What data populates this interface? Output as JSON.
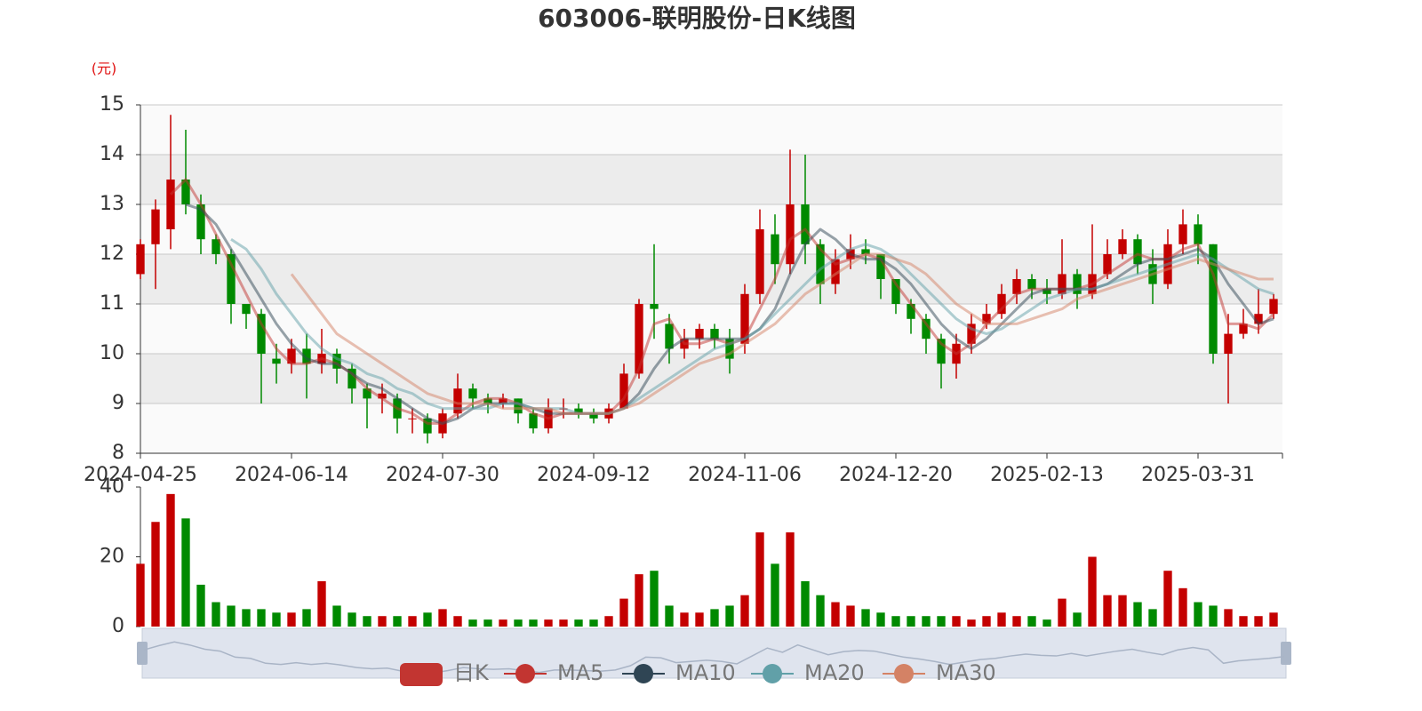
{
  "chart_data": {
    "type": "candlestick",
    "title": "603006-联明股份-日K线图",
    "y_unit": "(元)",
    "categories": [
      "2024-04-25",
      null,
      null,
      null,
      null,
      null,
      null,
      null,
      null,
      null,
      "2024-06-14",
      null,
      null,
      null,
      null,
      null,
      null,
      null,
      null,
      null,
      "2024-07-30",
      null,
      null,
      null,
      null,
      null,
      null,
      null,
      null,
      null,
      "2024-09-12",
      null,
      null,
      null,
      null,
      null,
      null,
      null,
      null,
      null,
      "2024-11-06",
      null,
      null,
      null,
      null,
      null,
      null,
      null,
      null,
      null,
      "2024-12-20",
      null,
      null,
      null,
      null,
      null,
      null,
      null,
      null,
      null,
      "2025-02-13",
      null,
      null,
      null,
      null,
      null,
      null,
      null,
      null,
      null,
      "2025-03-31",
      null,
      null,
      null,
      null,
      null
    ],
    "ylim": [
      8,
      15
    ],
    "yticks": [
      8,
      9,
      10,
      11,
      12,
      13,
      14,
      15
    ],
    "candles": {
      "name": "日K",
      "color": "#c23531",
      "up_color": "#c40000",
      "down_color": "#008a00",
      "open": [
        11.6,
        12.2,
        12.5,
        13.5,
        13.0,
        12.3,
        12.0,
        11.0,
        10.8,
        9.9,
        9.8,
        10.1,
        9.8,
        10.0,
        9.7,
        9.3,
        9.1,
        9.1,
        8.7,
        8.7,
        8.4,
        8.8,
        9.3,
        9.1,
        9.0,
        9.1,
        8.8,
        8.5,
        8.9,
        8.9,
        8.8,
        8.7,
        8.9,
        9.6,
        11.0,
        10.6,
        10.1,
        10.3,
        10.5,
        10.3,
        10.2,
        11.2,
        12.4,
        11.8,
        13.0,
        12.2,
        11.4,
        11.9,
        12.1,
        12.0,
        11.5,
        11.0,
        10.7,
        10.3,
        9.8,
        10.2,
        10.6,
        10.8,
        11.2,
        11.5,
        11.3,
        11.2,
        11.6,
        11.2,
        11.6,
        12.0,
        12.3,
        11.8,
        11.4,
        12.2,
        12.6,
        12.2,
        10.0,
        10.4,
        10.6,
        10.8
      ],
      "close": [
        12.2,
        12.9,
        13.5,
        13.0,
        12.3,
        12.0,
        11.0,
        10.8,
        10.0,
        9.8,
        10.1,
        9.8,
        10.0,
        9.7,
        9.3,
        9.1,
        9.2,
        8.7,
        8.7,
        8.4,
        8.8,
        9.3,
        9.1,
        9.0,
        9.1,
        8.8,
        8.5,
        8.9,
        8.9,
        8.8,
        8.7,
        8.9,
        9.6,
        11.0,
        10.9,
        10.1,
        10.3,
        10.5,
        10.3,
        9.9,
        11.2,
        12.5,
        11.8,
        13.0,
        12.2,
        11.4,
        11.9,
        12.1,
        12.0,
        11.5,
        11.0,
        10.7,
        10.3,
        9.8,
        10.2,
        10.6,
        10.8,
        11.2,
        11.5,
        11.3,
        11.2,
        11.6,
        11.2,
        11.6,
        12.0,
        12.3,
        11.8,
        11.4,
        12.2,
        12.6,
        12.2,
        10.0,
        10.4,
        10.6,
        10.8,
        11.1
      ],
      "high": [
        12.3,
        13.1,
        14.8,
        14.5,
        13.2,
        12.4,
        12.1,
        11.0,
        10.9,
        10.2,
        10.3,
        10.4,
        10.5,
        10.1,
        9.8,
        9.4,
        9.4,
        9.2,
        8.9,
        8.8,
        8.9,
        9.6,
        9.4,
        9.2,
        9.2,
        9.1,
        8.9,
        9.1,
        9.1,
        9.0,
        8.9,
        9.0,
        9.8,
        11.1,
        12.2,
        10.8,
        10.5,
        10.6,
        10.6,
        10.5,
        11.4,
        12.9,
        12.8,
        14.1,
        14.0,
        12.3,
        12.1,
        12.4,
        12.3,
        12.0,
        11.5,
        11.1,
        10.8,
        10.4,
        10.4,
        10.8,
        11.0,
        11.4,
        11.7,
        11.6,
        11.5,
        12.3,
        11.7,
        12.6,
        12.3,
        12.5,
        12.4,
        12.1,
        12.5,
        12.9,
        12.8,
        12.2,
        10.8,
        10.9,
        11.3,
        11.2
      ],
      "low": [
        11.5,
        11.3,
        12.1,
        12.8,
        12.0,
        11.8,
        10.6,
        10.5,
        9.0,
        9.4,
        9.6,
        9.1,
        9.6,
        9.4,
        9.0,
        8.5,
        8.8,
        8.4,
        8.4,
        8.2,
        8.3,
        8.7,
        8.9,
        8.8,
        8.9,
        8.6,
        8.4,
        8.4,
        8.7,
        8.7,
        8.6,
        8.6,
        8.9,
        9.5,
        10.3,
        9.8,
        9.9,
        10.1,
        10.1,
        9.6,
        10.0,
        11.0,
        11.4,
        11.6,
        11.8,
        11.0,
        11.2,
        11.7,
        11.8,
        11.1,
        10.8,
        10.4,
        10.0,
        9.3,
        9.5,
        10.0,
        10.5,
        10.7,
        11.0,
        11.1,
        11.0,
        11.1,
        10.9,
        11.1,
        11.5,
        11.9,
        11.6,
        11.0,
        11.3,
        12.0,
        11.8,
        9.8,
        9.0,
        10.3,
        10.4,
        10.7
      ]
    },
    "series": [
      {
        "name": "MA5",
        "color": "#c23531",
        "values": [
          null,
          null,
          13.2,
          13.5,
          13.0,
          12.4,
          11.8,
          11.2,
          10.6,
          10.1,
          9.8,
          9.8,
          9.9,
          9.8,
          9.6,
          9.3,
          9.1,
          8.9,
          8.8,
          8.6,
          8.6,
          8.8,
          9.0,
          9.1,
          9.1,
          9.0,
          8.8,
          8.7,
          8.8,
          8.8,
          8.8,
          8.8,
          9.1,
          9.7,
          10.6,
          10.7,
          10.2,
          10.2,
          10.3,
          10.2,
          10.3,
          10.9,
          11.5,
          12.3,
          12.5,
          12.1,
          11.8,
          11.9,
          12.0,
          11.9,
          11.4,
          11.0,
          10.6,
          10.2,
          10.0,
          10.2,
          10.6,
          10.9,
          11.2,
          11.3,
          11.3,
          11.3,
          11.3,
          11.4,
          11.6,
          11.8,
          12.0,
          11.9,
          11.9,
          12.1,
          12.2,
          11.6,
          10.6,
          10.6,
          10.5,
          10.8
        ]
      },
      {
        "name": "MA10",
        "color": "#2f4554",
        "values": [
          null,
          null,
          null,
          13.0,
          12.9,
          12.6,
          12.1,
          11.6,
          11.1,
          10.6,
          10.2,
          9.9,
          9.8,
          9.8,
          9.6,
          9.4,
          9.3,
          9.1,
          8.9,
          8.7,
          8.6,
          8.7,
          8.9,
          9.0,
          9.0,
          9.0,
          8.9,
          8.8,
          8.8,
          8.8,
          8.8,
          8.8,
          8.9,
          9.2,
          9.7,
          10.1,
          10.3,
          10.3,
          10.3,
          10.3,
          10.3,
          10.5,
          10.9,
          11.6,
          12.2,
          12.5,
          12.3,
          12.0,
          11.9,
          11.9,
          11.7,
          11.4,
          11.0,
          10.6,
          10.3,
          10.1,
          10.3,
          10.6,
          10.9,
          11.2,
          11.3,
          11.3,
          11.3,
          11.3,
          11.4,
          11.6,
          11.8,
          11.9,
          11.9,
          12.0,
          12.1,
          11.9,
          11.4,
          11.0,
          10.6,
          10.7
        ]
      },
      {
        "name": "MA20",
        "color": "#61a0a8",
        "values": [
          null,
          null,
          null,
          null,
          null,
          null,
          12.3,
          12.1,
          11.7,
          11.2,
          10.8,
          10.4,
          10.1,
          9.9,
          9.8,
          9.6,
          9.5,
          9.3,
          9.2,
          9.0,
          8.9,
          8.9,
          8.9,
          8.9,
          9.0,
          9.0,
          8.9,
          8.9,
          8.9,
          8.8,
          8.8,
          8.8,
          8.9,
          9.1,
          9.3,
          9.5,
          9.7,
          9.9,
          10.1,
          10.2,
          10.3,
          10.5,
          10.8,
          11.1,
          11.4,
          11.7,
          11.9,
          12.1,
          12.2,
          12.1,
          11.9,
          11.6,
          11.3,
          11.0,
          10.7,
          10.5,
          10.4,
          10.5,
          10.7,
          10.9,
          11.1,
          11.2,
          11.3,
          11.3,
          11.4,
          11.5,
          11.6,
          11.7,
          11.8,
          11.9,
          12.0,
          11.9,
          11.7,
          11.5,
          11.3,
          11.2
        ]
      },
      {
        "name": "MA30",
        "color": "#d48265",
        "values": [
          null,
          null,
          null,
          null,
          null,
          null,
          null,
          null,
          null,
          null,
          11.6,
          11.2,
          10.8,
          10.4,
          10.2,
          10.0,
          9.8,
          9.6,
          9.4,
          9.2,
          9.1,
          9.0,
          9.0,
          9.0,
          8.9,
          8.9,
          8.9,
          8.9,
          8.8,
          8.8,
          8.8,
          8.8,
          8.9,
          9.0,
          9.2,
          9.4,
          9.6,
          9.8,
          9.9,
          10.0,
          10.2,
          10.4,
          10.6,
          10.9,
          11.2,
          11.4,
          11.6,
          11.8,
          12.0,
          12.0,
          11.9,
          11.8,
          11.6,
          11.3,
          11.0,
          10.8,
          10.6,
          10.6,
          10.6,
          10.7,
          10.8,
          10.9,
          11.1,
          11.2,
          11.3,
          11.4,
          11.5,
          11.6,
          11.7,
          11.8,
          11.9,
          11.8,
          11.7,
          11.6,
          11.5,
          11.5
        ]
      }
    ],
    "volume": {
      "ylim": [
        0,
        40
      ],
      "yticks": [
        0,
        20,
        40
      ],
      "values": [
        18,
        30,
        38,
        31,
        12,
        7,
        6,
        5,
        5,
        4,
        4,
        5,
        13,
        6,
        4,
        3,
        3,
        3,
        3,
        4,
        5,
        3,
        2,
        2,
        2,
        2,
        2,
        2,
        2,
        2,
        2,
        3,
        8,
        15,
        16,
        6,
        4,
        4,
        5,
        6,
        9,
        27,
        18,
        27,
        13,
        9,
        7,
        6,
        5,
        4,
        3,
        3,
        3,
        3,
        3,
        2,
        3,
        4,
        3,
        3,
        2,
        8,
        4,
        20,
        9,
        9,
        7,
        5,
        16,
        11,
        7,
        6,
        5,
        3,
        3,
        4
      ]
    },
    "grid": true
  }
}
